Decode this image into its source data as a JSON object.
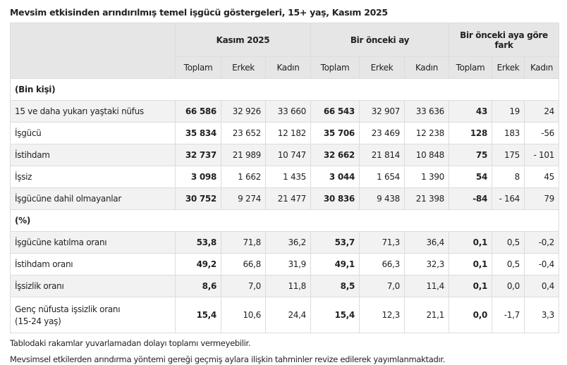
{
  "title": "Mevsim etkisinden arındırılmış temel işgücü göstergeleri, 15+ yaş, Kasım 2025",
  "groups": [
    "Kasım 2025",
    "Bir önceki ay",
    "Bir önceki aya göre fark"
  ],
  "subheaders": [
    "Toplam",
    "Erkek",
    "Kadın",
    "Toplam",
    "Erkek",
    "Kadın",
    "Toplam",
    "Erkek",
    "Kadın"
  ],
  "sections": [
    {
      "label": "(Bin kişi)",
      "rows": [
        {
          "label": "15 ve daha yukarı yaştaki nüfus",
          "values": [
            "66 586",
            "32 926",
            "33 660",
            "66 543",
            "32 907",
            "33 636",
            "43",
            "19",
            "24"
          ]
        },
        {
          "label": "İşgücü",
          "values": [
            "35 834",
            "23 652",
            "12 182",
            "35 706",
            "23 469",
            "12 238",
            "128",
            "183",
            "-56"
          ]
        },
        {
          "label": "İstihdam",
          "values": [
            "32 737",
            "21 989",
            "10 747",
            "32 662",
            "21 814",
            "10 848",
            "75",
            "175",
            "- 101"
          ]
        },
        {
          "label": "İşsiz",
          "values": [
            "3 098",
            "1 662",
            "1 435",
            "3 044",
            "1 654",
            "1 390",
            "54",
            "8",
            "45"
          ]
        },
        {
          "label": "İşgücüne dahil olmayanlar",
          "values": [
            "30 752",
            "9 274",
            "21 477",
            "30 836",
            "9 438",
            "21 398",
            "-84",
            "- 164",
            "79"
          ]
        }
      ]
    },
    {
      "label": "(%)",
      "rows": [
        {
          "label": "İşgücüne katılma oranı",
          "values": [
            "53,8",
            "71,8",
            "36,2",
            "53,7",
            "71,3",
            "36,4",
            "0,1",
            "0,5",
            "-0,2"
          ]
        },
        {
          "label": "İstihdam oranı",
          "values": [
            "49,2",
            "66,8",
            "31,9",
            "49,1",
            "66,3",
            "32,3",
            "0,1",
            "0,5",
            "-0,4"
          ]
        },
        {
          "label": "İşsizlik oranı",
          "values": [
            "8,6",
            "7,0",
            "11,8",
            "8,5",
            "7,0",
            "11,4",
            "0,1",
            "0,0",
            "0,4"
          ]
        },
        {
          "label": "Genç nüfusta işsizlik oranı",
          "label2": "(15-24 yaş)",
          "values": [
            "15,4",
            "10,6",
            "24,4",
            "15,4",
            "12,3",
            "21,1",
            "0,0",
            "-1,7",
            "3,3"
          ]
        }
      ]
    }
  ],
  "notes": [
    "Tablodaki rakamlar yuvarlamadan dolayı toplamı vermeyebilir.",
    "Mevsimsel etkilerden arındırma yöntemi gereği geçmiş aylara ilişkin tahminler revize edilerek yayımlanmaktadır."
  ]
}
